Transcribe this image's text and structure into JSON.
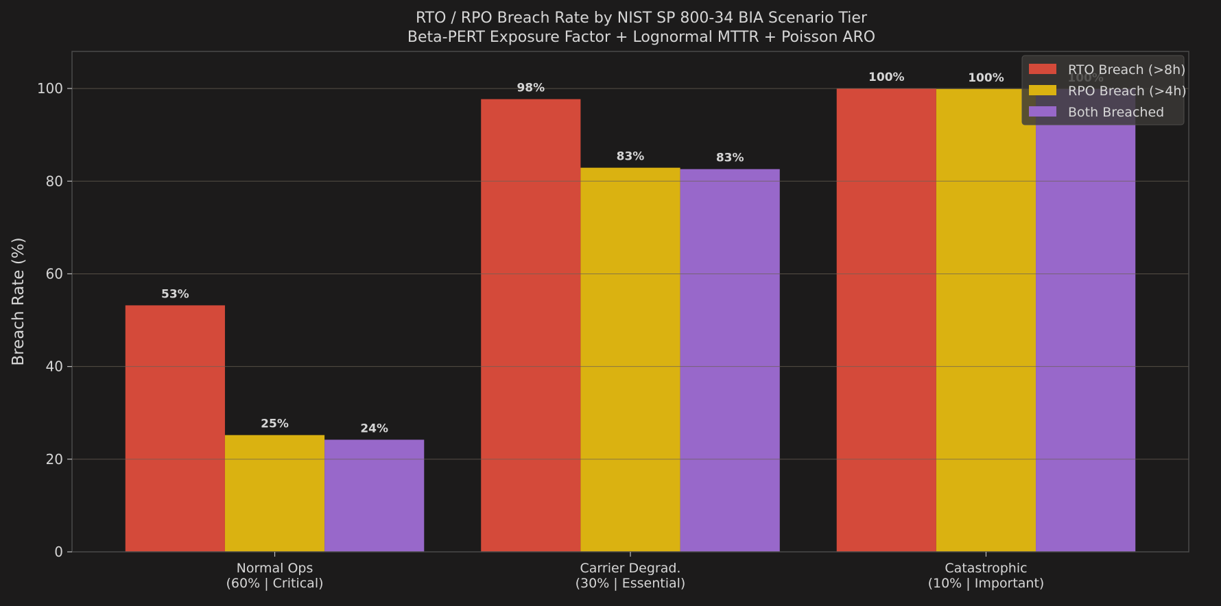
{
  "chart_data": {
    "type": "bar",
    "title": "RTO / RPO Breach Rate by NIST SP 800-34 BIA Scenario Tier",
    "subtitle": "Beta-PERT Exposure Factor + Lognormal MTTR + Poisson ARO",
    "xlabel": "",
    "ylabel": "Breach Rate (%)",
    "ylim": [
      0,
      108
    ],
    "yticks": [
      0,
      20,
      40,
      60,
      80,
      100
    ],
    "grid": true,
    "legend_position": "top-right",
    "categories": [
      [
        "Normal Ops",
        "(60% | Critical)"
      ],
      [
        "Carrier Degrad.",
        "(30% | Essential)"
      ],
      [
        "Catastrophic",
        "(10% | Important)"
      ]
    ],
    "series": [
      {
        "name": "RTO Breach (>8h)",
        "color": "#d44a3a",
        "values": [
          53.2,
          97.7,
          100.0
        ],
        "labels": [
          "53%",
          "98%",
          "100%"
        ]
      },
      {
        "name": "RPO Breach (>4h)",
        "color": "#dab211",
        "values": [
          25.2,
          82.9,
          99.9
        ],
        "labels": [
          "25%",
          "83%",
          "100%"
        ]
      },
      {
        "name": "Both Breached",
        "color": "#9868ca",
        "values": [
          24.2,
          82.6,
          99.9
        ],
        "labels": [
          "24%",
          "83%",
          "100%"
        ]
      }
    ],
    "colors": {
      "background": "#1c1b1b",
      "axes_edge": "#4a4a4a",
      "grid": "#6a6256",
      "text": "#d6d6d6",
      "legend_bg": "#3a3937",
      "legend_edge": "#4e4d4b"
    }
  }
}
